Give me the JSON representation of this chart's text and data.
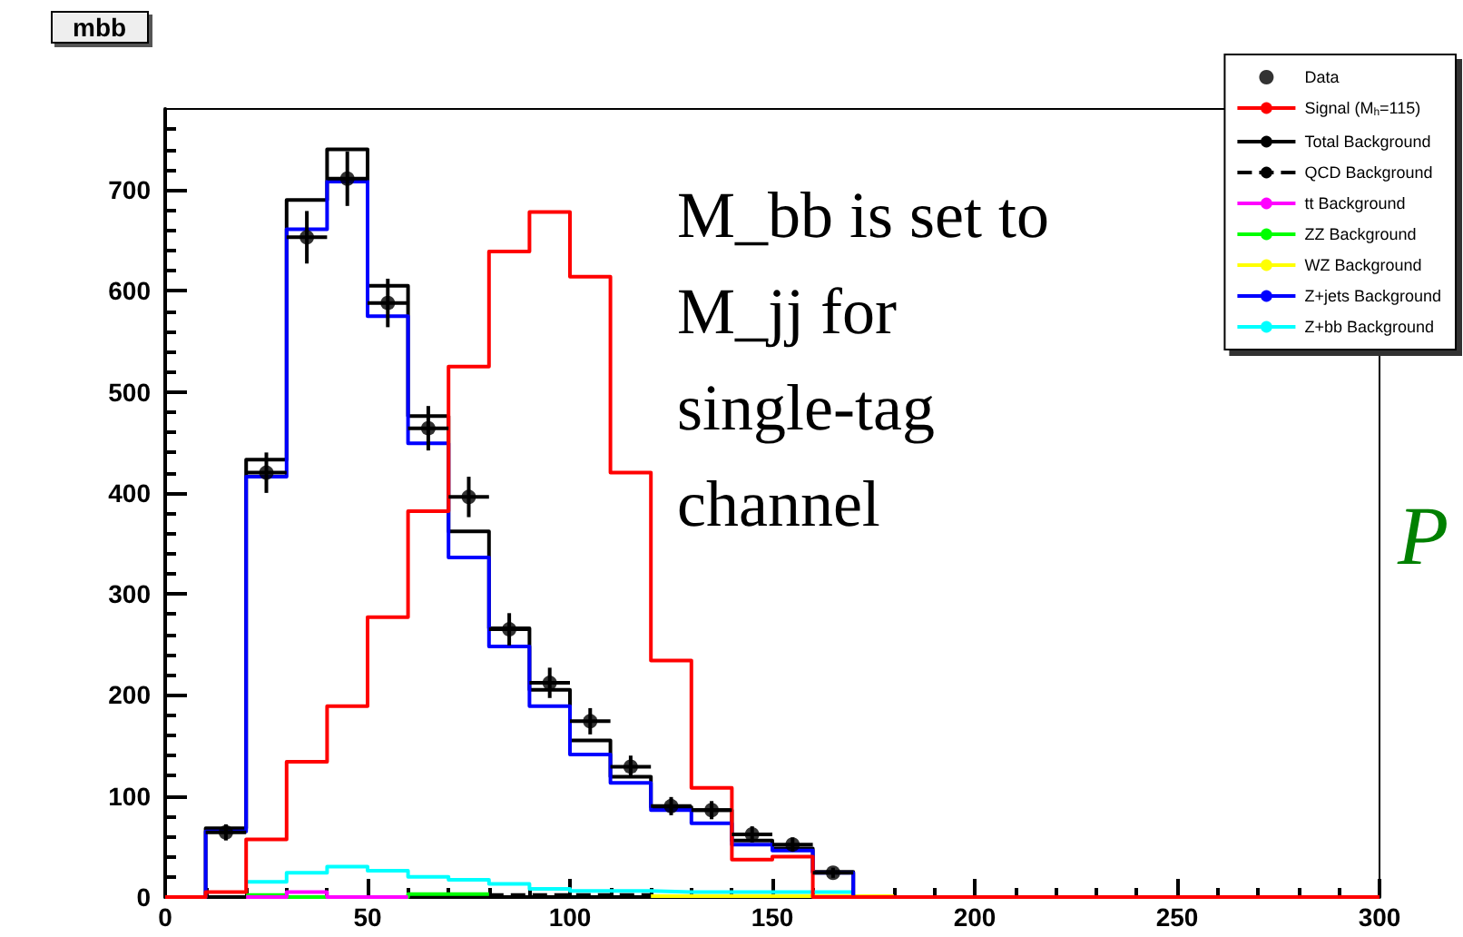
{
  "chart_data": {
    "type": "histogram",
    "title": "mbb",
    "annotations": [
      "M_bb is set to M_jj for single-tag channel",
      "P"
    ],
    "bins": [
      0,
      10,
      20,
      30,
      40,
      50,
      60,
      70,
      80,
      90,
      100,
      110,
      120,
      130,
      140,
      150,
      160,
      170,
      180,
      190,
      200,
      210,
      220,
      230,
      240,
      250,
      260,
      270,
      280,
      290,
      300
    ],
    "xlim": [
      0,
      300
    ],
    "xticks": [
      0,
      50,
      100,
      150,
      200,
      250,
      300
    ],
    "ylim": [
      0,
      780
    ],
    "yticks": [
      0,
      100,
      200,
      300,
      400,
      500,
      600,
      700
    ],
    "legend": "top right",
    "grid": false,
    "series": [
      {
        "name": "Data",
        "type": "scatter",
        "marker": "circle",
        "color": "#000000",
        "x": [
          15,
          25,
          35,
          45,
          55,
          65,
          75,
          85,
          95,
          105,
          115,
          125,
          135,
          145,
          155,
          165
        ],
        "values": [
          64,
          420,
          653,
          711,
          588,
          464,
          396,
          265,
          212,
          174,
          129,
          90,
          86,
          62,
          52,
          24
        ],
        "errors": [
          8,
          20,
          26,
          27,
          24,
          22,
          20,
          16,
          15,
          13,
          11,
          9,
          9,
          8,
          7,
          5
        ],
        "xerrors": [
          5,
          5,
          5,
          5,
          5,
          5,
          5,
          5,
          5,
          5,
          5,
          5,
          5,
          5,
          5,
          5
        ]
      },
      {
        "name": "Z+bb Background",
        "color": "#00ffff",
        "bins": [
          20,
          30,
          40,
          50,
          60,
          70,
          80,
          90,
          100,
          110,
          120,
          130,
          140,
          150,
          160,
          170
        ],
        "values": [
          15,
          24,
          30,
          26,
          20,
          17,
          13,
          8,
          6,
          6,
          5,
          5,
          5,
          5,
          5
        ]
      },
      {
        "name": "QCD Background",
        "color": "#000000",
        "line_style": "dashed",
        "bins": [
          80,
          90,
          100,
          110,
          120
        ],
        "values": [
          2,
          2,
          2,
          2
        ]
      },
      {
        "name": "ZZ Background",
        "color": "#00ff00",
        "bins": [
          20,
          30,
          40,
          50,
          60,
          70,
          80
        ],
        "values": [
          2,
          0,
          0,
          0,
          3,
          3
        ]
      },
      {
        "name": "tt Background",
        "color": "#ff00ff",
        "bins": [
          20,
          30,
          40,
          50,
          60
        ],
        "values": [
          0,
          5,
          0,
          0
        ]
      },
      {
        "name": "WZ Background",
        "color": "#ffff00",
        "bins": [
          120,
          130,
          140,
          150,
          160,
          170,
          180
        ],
        "values": [
          1,
          1,
          1,
          1,
          1,
          1
        ]
      },
      {
        "name": "Total Background",
        "color": "#000000",
        "values": [
          0,
          68,
          433,
          690,
          740,
          605,
          476,
          362,
          266,
          205,
          155,
          119,
          89,
          86,
          56,
          48,
          25,
          0,
          0,
          0,
          0,
          0,
          0,
          0,
          0,
          0,
          0,
          0,
          0,
          0
        ]
      },
      {
        "name": "Z+jets Background",
        "color": "#0000ff",
        "values": [
          0,
          65,
          416,
          661,
          708,
          575,
          449,
          336,
          248,
          189,
          141,
          113,
          86,
          73,
          52,
          46,
          24,
          0,
          0,
          0,
          0,
          0,
          0,
          0,
          0,
          0,
          0,
          0,
          0,
          0
        ]
      },
      {
        "name": "Signal (M$_{h}$=115)",
        "color": "#ff0000",
        "values": [
          0,
          5,
          57,
          134,
          189,
          277,
          382,
          525,
          639,
          678,
          614,
          420,
          234,
          108,
          37,
          40,
          0,
          0,
          0,
          0,
          0,
          0,
          0,
          0,
          0,
          0,
          0,
          0,
          0,
          0
        ]
      }
    ]
  }
}
